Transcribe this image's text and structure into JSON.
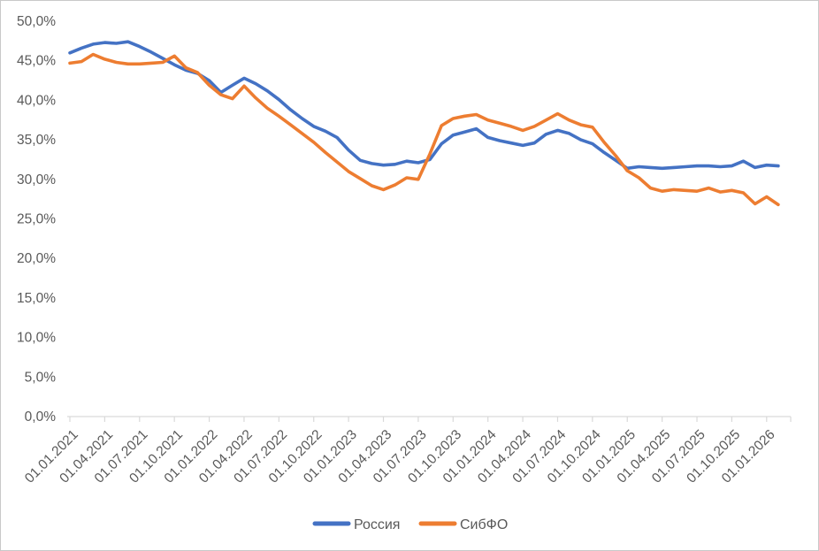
{
  "chart_data": {
    "type": "line",
    "title": "",
    "grid": false,
    "legend_position": "bottom",
    "x_axis": {
      "tick_labels": [
        "01.01.2021",
        "01.04.2021",
        "01.07.2021",
        "01.10.2021",
        "01.01.2022",
        "01.04.2022",
        "01.07.2022",
        "01.10.2022",
        "01.01.2023",
        "01.04.2023",
        "01.07.2023",
        "01.10.2023",
        "01.01.2024",
        "01.04.2024",
        "01.07.2024",
        "01.10.2024",
        "01.01.2025",
        "01.04.2025",
        "01.07.2025",
        "01.10.2025",
        "01.01.2026"
      ],
      "label_interval_months": 3,
      "monthly_points_start": "01.01.2021",
      "monthly_points_end": "01.02.2026"
    },
    "y_axis": {
      "min": 0,
      "max": 50,
      "step": 5,
      "tick_labels": [
        "0,0%",
        "5,0%",
        "10,0%",
        "15,0%",
        "20,0%",
        "25,0%",
        "30,0%",
        "35,0%",
        "40,0%",
        "45,0%",
        "50,0%"
      ]
    },
    "series": [
      {
        "name": "Россия",
        "color": "#4472C4",
        "values": [
          46.0,
          46.6,
          47.1,
          47.3,
          47.2,
          47.4,
          46.8,
          46.1,
          45.3,
          44.5,
          43.8,
          43.4,
          42.5,
          41.0,
          41.9,
          42.8,
          42.1,
          41.2,
          40.1,
          38.8,
          37.7,
          36.7,
          36.1,
          35.3,
          33.7,
          32.4,
          32.0,
          31.8,
          31.9,
          32.3,
          32.1,
          32.5,
          34.5,
          35.6,
          36.0,
          36.4,
          35.3,
          34.9,
          34.6,
          34.3,
          34.6,
          35.7,
          36.2,
          35.8,
          35.0,
          34.5,
          33.4,
          32.4,
          31.4,
          31.6,
          31.5,
          31.4,
          31.5,
          31.6,
          31.7,
          31.7,
          31.6,
          31.7,
          32.3,
          31.5,
          31.8,
          31.7
        ]
      },
      {
        "name": "СибФО",
        "color": "#ED7D31",
        "values": [
          44.7,
          44.9,
          45.8,
          45.2,
          44.8,
          44.6,
          44.6,
          44.7,
          44.8,
          45.6,
          44.1,
          43.5,
          41.9,
          40.7,
          40.2,
          41.8,
          40.3,
          39.0,
          38.0,
          36.9,
          35.8,
          34.7,
          33.4,
          32.2,
          31.0,
          30.1,
          29.2,
          28.7,
          29.3,
          30.2,
          30.0,
          33.2,
          36.8,
          37.7,
          38.0,
          38.2,
          37.5,
          37.1,
          36.7,
          36.2,
          36.7,
          37.5,
          38.3,
          37.5,
          36.9,
          36.6,
          34.7,
          33.0,
          31.1,
          30.2,
          28.9,
          28.5,
          28.7,
          28.6,
          28.5,
          28.9,
          28.4,
          28.6,
          28.3,
          26.9,
          27.8,
          26.8
        ]
      }
    ]
  },
  "colors": {
    "background": "#ffffff",
    "axis": "#d9d9d9",
    "text": "#595959"
  }
}
